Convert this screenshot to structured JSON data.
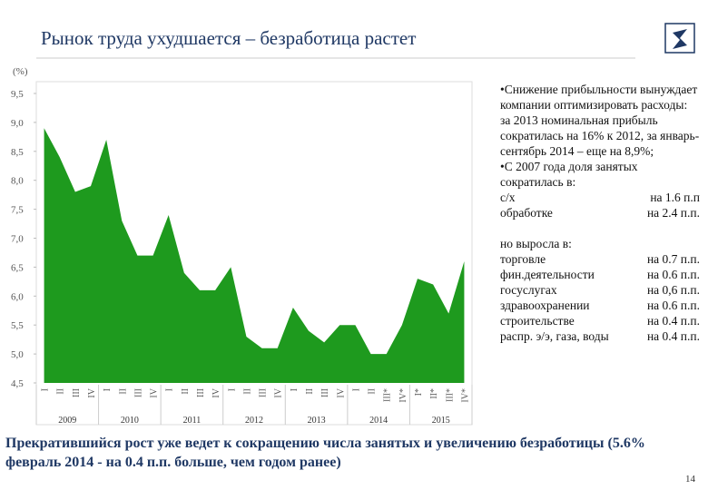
{
  "slide": {
    "title": "Рынок труда ухудшается – безработица растет",
    "page_number": "14"
  },
  "chart_data": {
    "type": "area",
    "y_label": "(%)",
    "color": "#1e9a1e",
    "categories": [
      "I",
      "II",
      "III",
      "IV",
      "I",
      "II",
      "III",
      "IV",
      "I",
      "II",
      "III",
      "IV",
      "I",
      "II",
      "III",
      "IV",
      "I",
      "II",
      "III",
      "IV",
      "I",
      "II",
      "III*",
      "IV*",
      "I*",
      "II*",
      "III*",
      "IV*"
    ],
    "year_groups": [
      "2009",
      "2010",
      "2011",
      "2012",
      "2013",
      "2014",
      "2015"
    ],
    "values": [
      8.9,
      8.4,
      7.8,
      7.9,
      8.7,
      7.3,
      6.7,
      6.7,
      7.4,
      6.4,
      6.1,
      6.1,
      6.5,
      5.3,
      5.1,
      5.1,
      5.8,
      5.4,
      5.2,
      5.5,
      5.5,
      5.0,
      5.0,
      5.5,
      6.3,
      6.2,
      5.7,
      6.6
    ],
    "ylim": [
      4.5,
      9.5
    ],
    "yticks": [
      {
        "value": 4.5,
        "label": "4,5"
      },
      {
        "value": 5.0,
        "label": "5,0"
      },
      {
        "value": 5.5,
        "label": "5,5"
      },
      {
        "value": 6.0,
        "label": "6,0"
      },
      {
        "value": 6.5,
        "label": "6,5"
      },
      {
        "value": 7.0,
        "label": "7,0"
      },
      {
        "value": 7.5,
        "label": "7,5"
      },
      {
        "value": 8.0,
        "label": "8,0"
      },
      {
        "value": 8.5,
        "label": "8,5"
      },
      {
        "value": 9.0,
        "label": "9,0"
      },
      {
        "value": 9.5,
        "label": "9,5"
      }
    ]
  },
  "notes": {
    "bullet1": "•Снижение прибыльности вынуждает компании оптимизировать расходы: за 2013 номинальная прибыль сократилась на 16% к 2012, за январь-сентябрь 2014 – еще на 8,9%;",
    "bullet2": "•С 2007 года доля занятых сократилась в:",
    "decline_rows": [
      [
        "с/х",
        "на 1.6 п.п"
      ],
      [
        "обработке",
        "на 2.4 п.п."
      ]
    ],
    "growth_intro": "но выросла в:",
    "growth_rows": [
      [
        "торговле",
        "на 0.7 п.п."
      ],
      [
        "фин.деятельности",
        "на 0.6 п.п."
      ],
      [
        "госуслугах",
        "на 0,6 п.п."
      ],
      [
        "здравоохранении",
        "на 0.6 п.п."
      ],
      [
        "строительстве",
        "на 0.4 п.п."
      ],
      [
        "распр. э/э, газа, воды",
        "на 0.4 п.п."
      ]
    ]
  },
  "footer": {
    "text": "Прекратившийся рост уже ведет к сокращению числа занятых и увеличению безработицы (5.6% февраль 2014  - на 0.4 п.п. больше, чем годом ранее)"
  }
}
